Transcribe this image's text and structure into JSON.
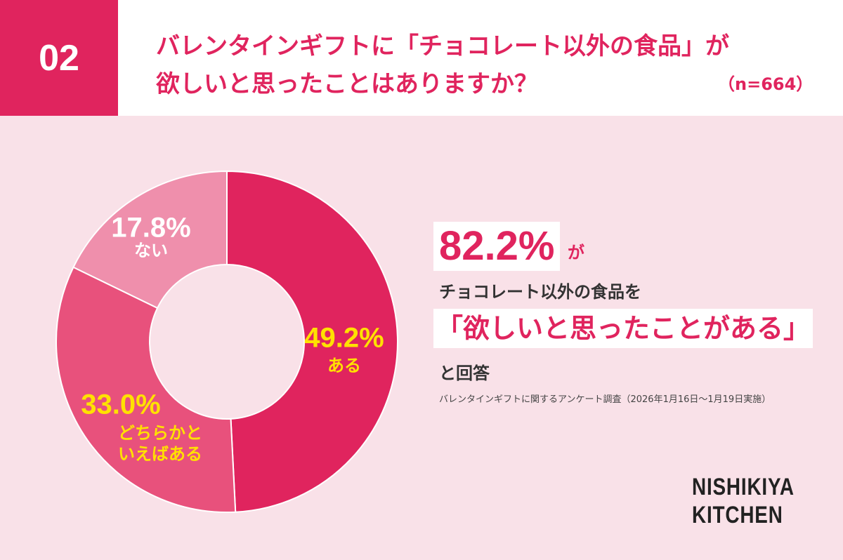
{
  "chart_data": {
    "type": "donut",
    "number": "02",
    "title": [
      "バレンタインギフトに「チョコレート以外の食品」が",
      "欲しいと思ったことはありますか？"
    ],
    "sample": "（n=664）",
    "categories": [
      "ある",
      "どちらかといえばある",
      "ない"
    ],
    "values": [
      49.2,
      33.0,
      17.8
    ],
    "value_labels": [
      "49.2%",
      "33.0%",
      "17.8%"
    ],
    "colors": [
      "#e0245e",
      "#e8517c",
      "#ef8fac"
    ],
    "annotation": {
      "highlight": "82.2%",
      "particle": "が",
      "line2": "チョコレート以外の食品を",
      "quote": "「欲しいと思ったことがある」",
      "line4": "と回答"
    },
    "source": "バレンタインギフトに関するアンケート調査（2026年1月16日～1月19日実施）",
    "brand": [
      "NISHIKIYA",
      "KITCHEN"
    ]
  }
}
